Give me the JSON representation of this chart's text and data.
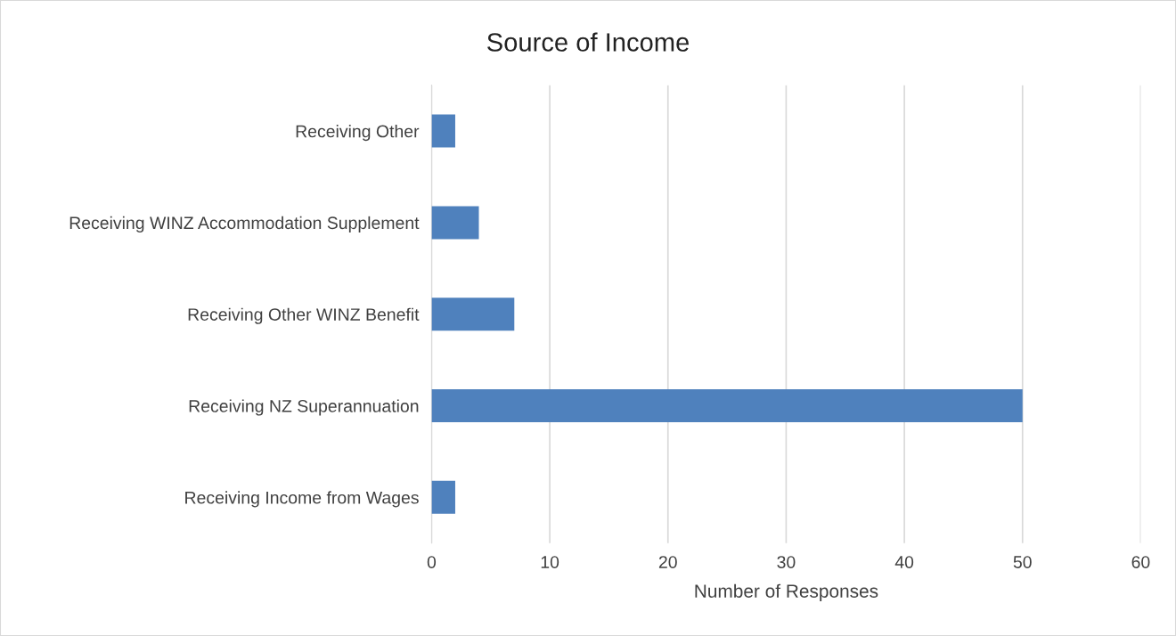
{
  "chart_data": {
    "type": "bar",
    "orientation": "horizontal",
    "title": "Source of Income",
    "xlabel": "Number of Responses",
    "categories": [
      "Receiving Other",
      "Receiving WINZ Accommodation Supplement",
      "Receiving Other WINZ Benefit",
      "Receiving NZ Superannuation",
      "Receiving Income from Wages"
    ],
    "values": [
      2,
      4,
      7,
      50,
      2
    ],
    "color": "#4f81bd",
    "xlim": [
      0,
      60
    ],
    "xticks": [
      0,
      10,
      20,
      30,
      40,
      50,
      60
    ],
    "grid": "x",
    "legend": false
  }
}
